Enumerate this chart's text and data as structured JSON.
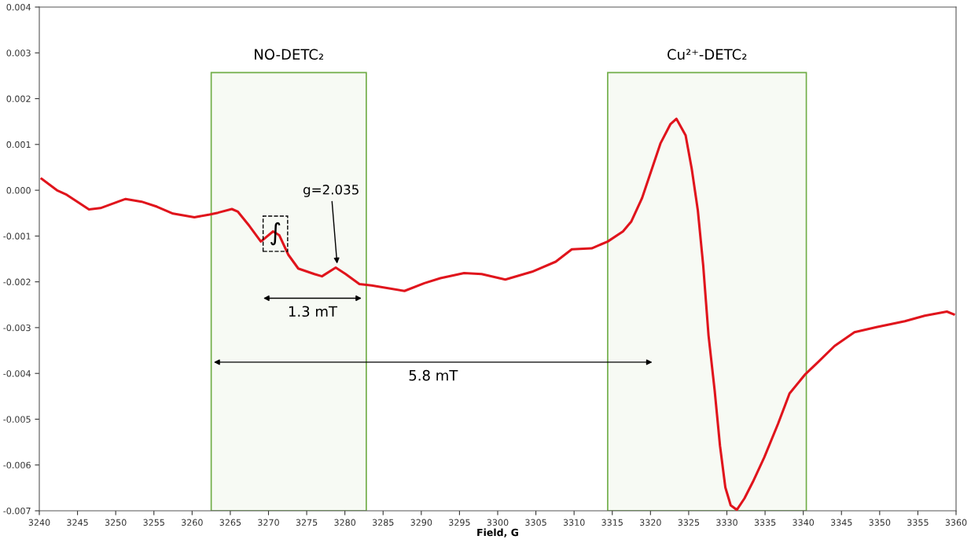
{
  "chart_data": {
    "type": "line",
    "xlabel": "Field, G",
    "x": [
      3240.3,
      3242.3,
      3243.6,
      3246.5,
      3248.0,
      3251.3,
      3253.4,
      3255.4,
      3257.5,
      3260.3,
      3262.3,
      3263.4,
      3265.2,
      3266.0,
      3267.5,
      3269.0,
      3270.6,
      3271.4,
      3272.6,
      3273.9,
      3276.0,
      3277.0,
      3278.8,
      3280.1,
      3281.9,
      3283.5,
      3287.8,
      3290.4,
      3292.5,
      3295.6,
      3297.9,
      3301.0,
      3304.5,
      3307.6,
      3309.7,
      3312.3,
      3314.4,
      3316.4,
      3317.5,
      3318.9,
      3321.3,
      3322.6,
      3323.4,
      3324.6,
      3325.4,
      3326.2,
      3326.9,
      3327.6,
      3328.4,
      3329.1,
      3329.8,
      3330.5,
      3331.3,
      3332.3,
      3333.4,
      3334.9,
      3336.7,
      3338.2,
      3340.2,
      3341.9,
      3344.1,
      3346.7,
      3349.6,
      3353.3,
      3355.9,
      3358.8,
      3359.7
    ],
    "series": [
      {
        "color": "#e0141c",
        "values": [
          0.00025,
          0.0,
          -0.0001,
          -0.00042,
          -0.00039,
          -0.00019,
          -0.00025,
          -0.00036,
          -0.00051,
          -0.00059,
          -0.00053,
          -0.00049,
          -0.00041,
          -0.00047,
          -0.00078,
          -0.00112,
          -0.0009,
          -0.00098,
          -0.00141,
          -0.00171,
          -0.00183,
          -0.00188,
          -0.00169,
          -0.00183,
          -0.00205,
          -0.00208,
          -0.0022,
          -0.00203,
          -0.00192,
          -0.00181,
          -0.00183,
          -0.00195,
          -0.00178,
          -0.00156,
          -0.00129,
          -0.00127,
          -0.00112,
          -0.0009,
          -0.00068,
          -0.00017,
          0.00102,
          0.00144,
          0.00156,
          0.0012,
          0.00047,
          -0.00044,
          -0.00164,
          -0.00317,
          -0.00437,
          -0.00558,
          -0.00649,
          -0.00688,
          -0.00698,
          -0.00673,
          -0.00637,
          -0.00583,
          -0.0051,
          -0.00444,
          -0.00403,
          -0.00376,
          -0.0034,
          -0.0031,
          -0.00299,
          -0.00286,
          -0.00274,
          -0.00265,
          -0.00271
        ]
      }
    ],
    "xlim": [
      3240,
      3360
    ],
    "xticks": [
      3240,
      3245,
      3250,
      3255,
      3260,
      3265,
      3270,
      3275,
      3280,
      3285,
      3290,
      3295,
      3300,
      3305,
      3310,
      3315,
      3320,
      3325,
      3330,
      3335,
      3340,
      3345,
      3350,
      3355,
      3360
    ],
    "ylim": [
      -0.007,
      0.004
    ],
    "yticks": [
      {
        "value": 0.004,
        "label": "0.004"
      },
      {
        "value": 0.003,
        "label": "0.003"
      },
      {
        "value": 0.002,
        "label": "0.002"
      },
      {
        "value": 0.001,
        "label": "0.001"
      },
      {
        "value": 0.0,
        "label": "0.000"
      },
      {
        "value": -0.001,
        "label": "-0.001"
      },
      {
        "value": -0.002,
        "label": "-0.002"
      },
      {
        "value": -0.003,
        "label": "-0.003"
      },
      {
        "value": -0.004,
        "label": "-0.004"
      },
      {
        "value": -0.005,
        "label": "-0.005"
      },
      {
        "value": -0.006,
        "label": "-0.006"
      },
      {
        "value": -0.007,
        "label": "-0.007"
      }
    ],
    "bands": [
      {
        "axis": "x",
        "from": 3262.5,
        "to": 3282.8,
        "label": "NO-DETC₂",
        "color": "#70ad47"
      },
      {
        "axis": "x",
        "from": 3314.4,
        "to": 3340.4,
        "label": "Cu²⁺-DETC₂",
        "color": "#70ad47"
      }
    ],
    "annotations": [
      {
        "text": "g=2.035",
        "x": 3279,
        "y": -0.00165
      },
      {
        "text": "∫",
        "x": 3270.9,
        "y": -0.00095
      },
      "1.3 mT",
      "5.8 mT"
    ],
    "grid": false,
    "line_style": "solid",
    "marker": "none"
  }
}
